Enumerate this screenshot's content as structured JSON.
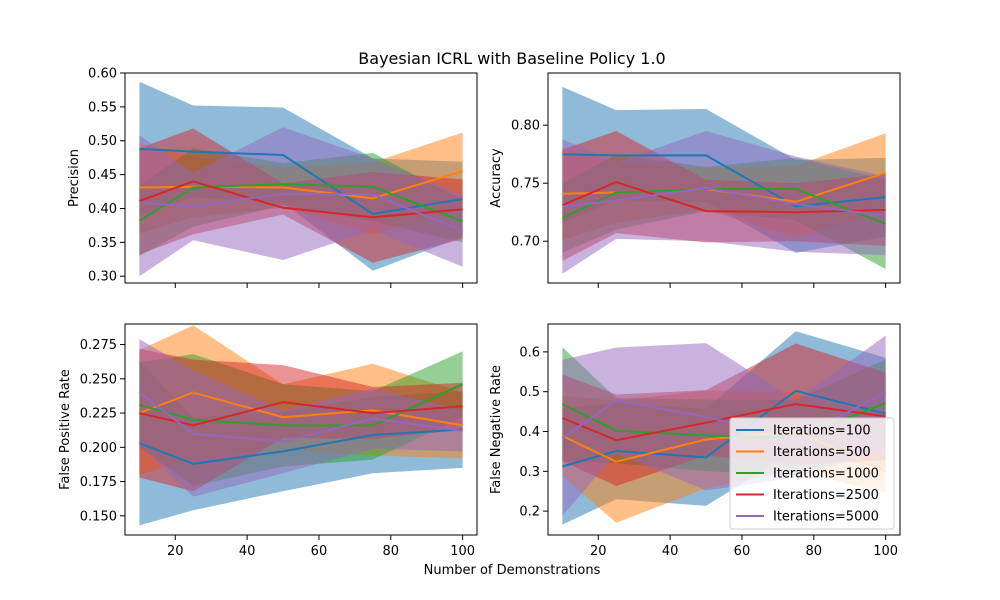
{
  "figure": {
    "title": "Bayesian ICRL with Baseline Policy 1.0",
    "xlabel": "Number of Demonstrations"
  },
  "series_colors": {
    "Iterations=100": "#1f77b4",
    "Iterations=500": "#ff7f0e",
    "Iterations=1000": "#2ca02c",
    "Iterations=2500": "#d62728",
    "Iterations=5000": "#9467bd"
  },
  "chart_data": [
    {
      "type": "line",
      "panel": "top-left",
      "ylabel": "Precision",
      "x": [
        10,
        25,
        50,
        75,
        100
      ],
      "xlim": [
        6,
        104
      ],
      "ylim": [
        0.29,
        0.6
      ],
      "xticks": [
        20,
        40,
        60,
        80,
        100
      ],
      "xtick_labels_visible": false,
      "yticks": [
        0.3,
        0.35,
        0.4,
        0.45,
        0.5,
        0.55,
        0.6
      ],
      "ytick_labels": [
        "0.30",
        "0.35",
        "0.40",
        "0.45",
        "0.50",
        "0.55",
        "0.60"
      ],
      "series": [
        {
          "name": "Iterations=100",
          "values": [
            0.488,
            0.484,
            0.479,
            0.392,
            0.414
          ],
          "lower": [
            0.389,
            0.416,
            0.409,
            0.308,
            0.358
          ],
          "upper": [
            0.587,
            0.552,
            0.549,
            0.474,
            0.469
          ]
        },
        {
          "name": "Iterations=500",
          "values": [
            0.431,
            0.432,
            0.431,
            0.415,
            0.455
          ],
          "lower": [
            0.363,
            0.387,
            0.401,
            0.362,
            0.398
          ],
          "upper": [
            0.496,
            0.476,
            0.461,
            0.468,
            0.512
          ]
        },
        {
          "name": "Iterations=1000",
          "values": [
            0.382,
            0.431,
            0.436,
            0.432,
            0.381
          ],
          "lower": [
            0.33,
            0.373,
            0.405,
            0.381,
            0.35
          ],
          "upper": [
            0.434,
            0.489,
            0.467,
            0.482,
            0.412
          ]
        },
        {
          "name": "Iterations=2500",
          "values": [
            0.411,
            0.44,
            0.401,
            0.387,
            0.399
          ],
          "lower": [
            0.332,
            0.362,
            0.391,
            0.32,
            0.355
          ],
          "upper": [
            0.489,
            0.518,
            0.437,
            0.454,
            0.443
          ]
        },
        {
          "name": "Iterations=5000",
          "values": [
            0.409,
            0.403,
            0.422,
            0.421,
            0.367
          ],
          "lower": [
            0.3,
            0.353,
            0.324,
            0.368,
            0.314
          ],
          "upper": [
            0.508,
            0.453,
            0.52,
            0.474,
            0.42
          ]
        }
      ]
    },
    {
      "type": "line",
      "panel": "top-right",
      "ylabel": "Accuracy",
      "x": [
        10,
        25,
        50,
        75,
        100
      ],
      "xlim": [
        6,
        104
      ],
      "ylim": [
        0.664,
        0.845
      ],
      "xticks": [
        20,
        40,
        60,
        80,
        100
      ],
      "xtick_labels_visible": false,
      "yticks": [
        0.7,
        0.75,
        0.8
      ],
      "ytick_labels": [
        "0.70",
        "0.75",
        "0.80"
      ],
      "series": [
        {
          "name": "Iterations=100",
          "values": [
            0.775,
            0.774,
            0.774,
            0.73,
            0.738
          ],
          "lower": [
            0.716,
            0.735,
            0.734,
            0.69,
            0.704
          ],
          "upper": [
            0.833,
            0.813,
            0.814,
            0.77,
            0.772
          ]
        },
        {
          "name": "Iterations=500",
          "values": [
            0.741,
            0.742,
            0.745,
            0.734,
            0.759
          ],
          "lower": [
            0.701,
            0.716,
            0.727,
            0.703,
            0.726
          ],
          "upper": [
            0.781,
            0.768,
            0.763,
            0.765,
            0.793
          ]
        },
        {
          "name": "Iterations=1000",
          "values": [
            0.72,
            0.742,
            0.745,
            0.745,
            0.715
          ],
          "lower": [
            0.69,
            0.71,
            0.726,
            0.718,
            0.676
          ],
          "upper": [
            0.75,
            0.775,
            0.764,
            0.772,
            0.753
          ]
        },
        {
          "name": "Iterations=2500",
          "values": [
            0.731,
            0.751,
            0.726,
            0.725,
            0.727
          ],
          "lower": [
            0.683,
            0.707,
            0.699,
            0.7,
            0.696
          ],
          "upper": [
            0.779,
            0.795,
            0.753,
            0.75,
            0.758
          ]
        },
        {
          "name": "Iterations=5000",
          "values": [
            0.73,
            0.735,
            0.746,
            0.732,
            0.722
          ],
          "lower": [
            0.672,
            0.702,
            0.7,
            0.691,
            0.688
          ],
          "upper": [
            0.788,
            0.768,
            0.795,
            0.773,
            0.756
          ]
        }
      ]
    },
    {
      "type": "line",
      "panel": "bottom-left",
      "ylabel": "False Positive Rate",
      "x": [
        10,
        25,
        50,
        75,
        100
      ],
      "xlim": [
        6,
        104
      ],
      "ylim": [
        0.136,
        0.29
      ],
      "xticks": [
        20,
        40,
        60,
        80,
        100
      ],
      "xtick_labels": [
        "20",
        "40",
        "60",
        "80",
        "100"
      ],
      "yticks": [
        0.15,
        0.175,
        0.2,
        0.225,
        0.25,
        0.275
      ],
      "ytick_labels": [
        "0.150",
        "0.175",
        "0.200",
        "0.225",
        "0.250",
        "0.275"
      ],
      "series": [
        {
          "name": "Iterations=100",
          "values": [
            0.203,
            0.188,
            0.197,
            0.209,
            0.213
          ],
          "lower": [
            0.143,
            0.154,
            0.168,
            0.181,
            0.185
          ],
          "upper": [
            0.263,
            0.222,
            0.226,
            0.237,
            0.241
          ]
        },
        {
          "name": "Iterations=500",
          "values": [
            0.225,
            0.24,
            0.222,
            0.227,
            0.216
          ],
          "lower": [
            0.18,
            0.192,
            0.198,
            0.194,
            0.192
          ],
          "upper": [
            0.271,
            0.289,
            0.246,
            0.261,
            0.24
          ]
        },
        {
          "name": "Iterations=1000",
          "values": [
            0.231,
            0.22,
            0.216,
            0.216,
            0.246
          ],
          "lower": [
            0.2,
            0.172,
            0.186,
            0.191,
            0.222
          ],
          "upper": [
            0.262,
            0.268,
            0.246,
            0.241,
            0.27
          ]
        },
        {
          "name": "Iterations=2500",
          "values": [
            0.225,
            0.216,
            0.233,
            0.225,
            0.23
          ],
          "lower": [
            0.178,
            0.168,
            0.207,
            0.206,
            0.213
          ],
          "upper": [
            0.272,
            0.264,
            0.26,
            0.244,
            0.247
          ]
        },
        {
          "name": "Iterations=5000",
          "values": [
            0.24,
            0.21,
            0.204,
            0.221,
            0.212
          ],
          "lower": [
            0.201,
            0.164,
            0.181,
            0.199,
            0.197
          ],
          "upper": [
            0.279,
            0.256,
            0.227,
            0.243,
            0.227
          ]
        }
      ]
    },
    {
      "type": "line",
      "panel": "bottom-right",
      "ylabel": "False Negative Rate",
      "x": [
        10,
        25,
        50,
        75,
        100
      ],
      "xlim": [
        6,
        104
      ],
      "ylim": [
        0.14,
        0.67
      ],
      "xticks": [
        20,
        40,
        60,
        80,
        100
      ],
      "xtick_labels": [
        "20",
        "40",
        "60",
        "80",
        "100"
      ],
      "yticks": [
        0.2,
        0.3,
        0.4,
        0.5,
        0.6
      ],
      "ytick_labels": [
        "0.2",
        "0.3",
        "0.4",
        "0.5",
        "0.6"
      ],
      "legend_position": "lower-right",
      "series": [
        {
          "name": "Iterations=100",
          "values": [
            0.312,
            0.351,
            0.335,
            0.502,
            0.445
          ],
          "lower": [
            0.166,
            0.23,
            0.213,
            0.352,
            0.305
          ],
          "upper": [
            0.458,
            0.472,
            0.457,
            0.652,
            0.585
          ]
        },
        {
          "name": "Iterations=500",
          "values": [
            0.389,
            0.324,
            0.38,
            0.401,
            0.3
          ],
          "lower": [
            0.288,
            0.171,
            0.257,
            0.302,
            0.245
          ],
          "upper": [
            0.49,
            0.477,
            0.503,
            0.5,
            0.355
          ]
        },
        {
          "name": "Iterations=1000",
          "values": [
            0.469,
            0.402,
            0.39,
            0.385,
            0.471
          ],
          "lower": [
            0.326,
            0.32,
            0.3,
            0.291,
            0.361
          ],
          "upper": [
            0.612,
            0.484,
            0.48,
            0.479,
            0.581
          ]
        },
        {
          "name": "Iterations=2500",
          "values": [
            0.434,
            0.378,
            0.422,
            0.469,
            0.438
          ],
          "lower": [
            0.325,
            0.263,
            0.34,
            0.317,
            0.328
          ],
          "upper": [
            0.543,
            0.493,
            0.504,
            0.621,
            0.548
          ]
        },
        {
          "name": "Iterations=5000",
          "values": [
            0.384,
            0.478,
            0.437,
            0.381,
            0.498
          ],
          "lower": [
            0.188,
            0.345,
            0.252,
            0.284,
            0.355
          ],
          "upper": [
            0.58,
            0.611,
            0.622,
            0.478,
            0.641
          ]
        }
      ]
    }
  ]
}
